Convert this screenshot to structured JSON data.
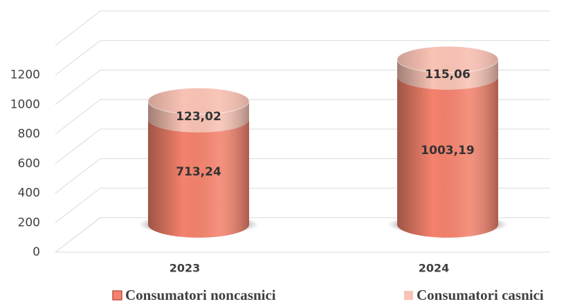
{
  "chart_data": {
    "type": "bar3d_stacked",
    "categories": [
      "2023",
      "2024"
    ],
    "series": [
      {
        "name": "Consumatori noncasnici",
        "color": "#f4826c",
        "values": [
          713.24,
          1003.19
        ],
        "value_labels": [
          "713,24",
          "1003,19"
        ]
      },
      {
        "name": "Consumatori casnici",
        "color": "#f8c2b4",
        "values": [
          123.02,
          115.06
        ],
        "value_labels": [
          "123,02",
          "115,06"
        ]
      }
    ],
    "ylim": [
      0,
      1400
    ],
    "yticks": [
      0,
      200,
      400,
      600,
      800,
      1000,
      1200
    ],
    "grid": true
  }
}
